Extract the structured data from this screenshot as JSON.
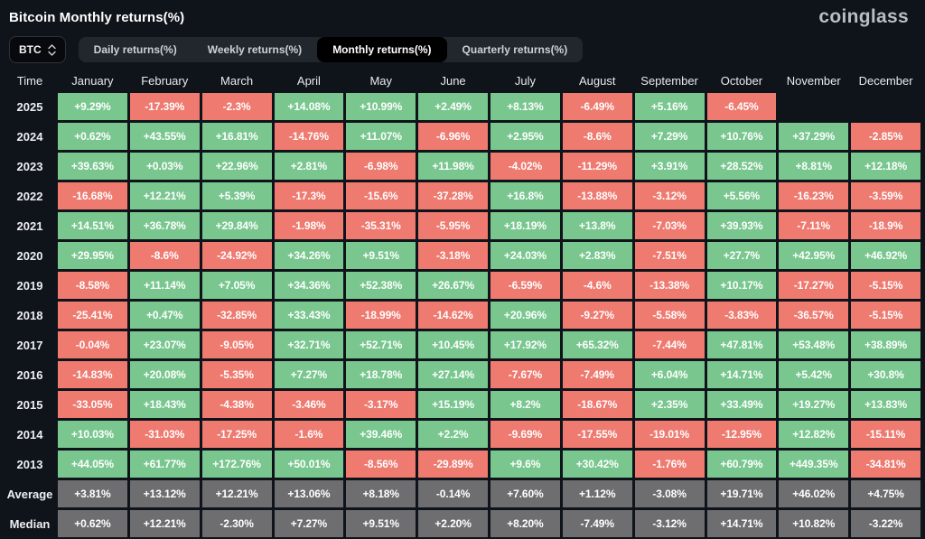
{
  "page": {
    "title": "Bitcoin Monthly returns(%)",
    "logo": "coinglass"
  },
  "controls": {
    "symbol_select": {
      "value": "BTC",
      "icon": "sort-updown-icon"
    },
    "tabs": [
      {
        "label": "Daily returns(%)",
        "active": false
      },
      {
        "label": "Weekly returns(%)",
        "active": false
      },
      {
        "label": "Monthly returns(%)",
        "active": true
      },
      {
        "label": "Quarterly returns(%)",
        "active": false
      }
    ]
  },
  "chart_data": {
    "type": "heatmap",
    "title": "Bitcoin Monthly returns(%)",
    "columns": [
      "Time",
      "January",
      "February",
      "March",
      "April",
      "May",
      "June",
      "July",
      "August",
      "September",
      "October",
      "November",
      "December"
    ],
    "colors": {
      "positive": "#79c78f",
      "negative": "#ee7a70",
      "summary": "#6e6e70",
      "text": "#ffffff",
      "background": "#0f131a"
    },
    "rows": [
      {
        "label": "2025",
        "kind": "year",
        "values": [
          "+9.29%",
          "-17.39%",
          "-2.3%",
          "+14.08%",
          "+10.99%",
          "+2.49%",
          "+8.13%",
          "-6.49%",
          "+5.16%",
          "-6.45%",
          "",
          ""
        ]
      },
      {
        "label": "2024",
        "kind": "year",
        "values": [
          "+0.62%",
          "+43.55%",
          "+16.81%",
          "-14.76%",
          "+11.07%",
          "-6.96%",
          "+2.95%",
          "-8.6%",
          "+7.29%",
          "+10.76%",
          "+37.29%",
          "-2.85%"
        ]
      },
      {
        "label": "2023",
        "kind": "year",
        "values": [
          "+39.63%",
          "+0.03%",
          "+22.96%",
          "+2.81%",
          "-6.98%",
          "+11.98%",
          "-4.02%",
          "-11.29%",
          "+3.91%",
          "+28.52%",
          "+8.81%",
          "+12.18%"
        ]
      },
      {
        "label": "2022",
        "kind": "year",
        "values": [
          "-16.68%",
          "+12.21%",
          "+5.39%",
          "-17.3%",
          "-15.6%",
          "-37.28%",
          "+16.8%",
          "-13.88%",
          "-3.12%",
          "+5.56%",
          "-16.23%",
          "-3.59%"
        ]
      },
      {
        "label": "2021",
        "kind": "year",
        "values": [
          "+14.51%",
          "+36.78%",
          "+29.84%",
          "-1.98%",
          "-35.31%",
          "-5.95%",
          "+18.19%",
          "+13.8%",
          "-7.03%",
          "+39.93%",
          "-7.11%",
          "-18.9%"
        ]
      },
      {
        "label": "2020",
        "kind": "year",
        "values": [
          "+29.95%",
          "-8.6%",
          "-24.92%",
          "+34.26%",
          "+9.51%",
          "-3.18%",
          "+24.03%",
          "+2.83%",
          "-7.51%",
          "+27.7%",
          "+42.95%",
          "+46.92%"
        ]
      },
      {
        "label": "2019",
        "kind": "year",
        "values": [
          "-8.58%",
          "+11.14%",
          "+7.05%",
          "+34.36%",
          "+52.38%",
          "+26.67%",
          "-6.59%",
          "-4.6%",
          "-13.38%",
          "+10.17%",
          "-17.27%",
          "-5.15%"
        ]
      },
      {
        "label": "2018",
        "kind": "year",
        "values": [
          "-25.41%",
          "+0.47%",
          "-32.85%",
          "+33.43%",
          "-18.99%",
          "-14.62%",
          "+20.96%",
          "-9.27%",
          "-5.58%",
          "-3.83%",
          "-36.57%",
          "-5.15%"
        ]
      },
      {
        "label": "2017",
        "kind": "year",
        "values": [
          "-0.04%",
          "+23.07%",
          "-9.05%",
          "+32.71%",
          "+52.71%",
          "+10.45%",
          "+17.92%",
          "+65.32%",
          "-7.44%",
          "+47.81%",
          "+53.48%",
          "+38.89%"
        ]
      },
      {
        "label": "2016",
        "kind": "year",
        "values": [
          "-14.83%",
          "+20.08%",
          "-5.35%",
          "+7.27%",
          "+18.78%",
          "+27.14%",
          "-7.67%",
          "-7.49%",
          "+6.04%",
          "+14.71%",
          "+5.42%",
          "+30.8%"
        ]
      },
      {
        "label": "2015",
        "kind": "year",
        "values": [
          "-33.05%",
          "+18.43%",
          "-4.38%",
          "-3.46%",
          "-3.17%",
          "+15.19%",
          "+8.2%",
          "-18.67%",
          "+2.35%",
          "+33.49%",
          "+19.27%",
          "+13.83%"
        ]
      },
      {
        "label": "2014",
        "kind": "year",
        "values": [
          "+10.03%",
          "-31.03%",
          "-17.25%",
          "-1.6%",
          "+39.46%",
          "+2.2%",
          "-9.69%",
          "-17.55%",
          "-19.01%",
          "-12.95%",
          "+12.82%",
          "-15.11%"
        ]
      },
      {
        "label": "2013",
        "kind": "year",
        "values": [
          "+44.05%",
          "+61.77%",
          "+172.76%",
          "+50.01%",
          "-8.56%",
          "-29.89%",
          "+9.6%",
          "+30.42%",
          "-1.76%",
          "+60.79%",
          "+449.35%",
          "-34.81%"
        ]
      },
      {
        "label": "Average",
        "kind": "summary",
        "values": [
          "+3.81%",
          "+13.12%",
          "+12.21%",
          "+13.06%",
          "+8.18%",
          "-0.14%",
          "+7.60%",
          "+1.12%",
          "-3.08%",
          "+19.71%",
          "+46.02%",
          "+4.75%"
        ]
      },
      {
        "label": "Median",
        "kind": "summary",
        "values": [
          "+0.62%",
          "+12.21%",
          "-2.30%",
          "+7.27%",
          "+9.51%",
          "+2.20%",
          "+8.20%",
          "-7.49%",
          "-3.12%",
          "+14.71%",
          "+10.82%",
          "-3.22%"
        ]
      }
    ]
  }
}
